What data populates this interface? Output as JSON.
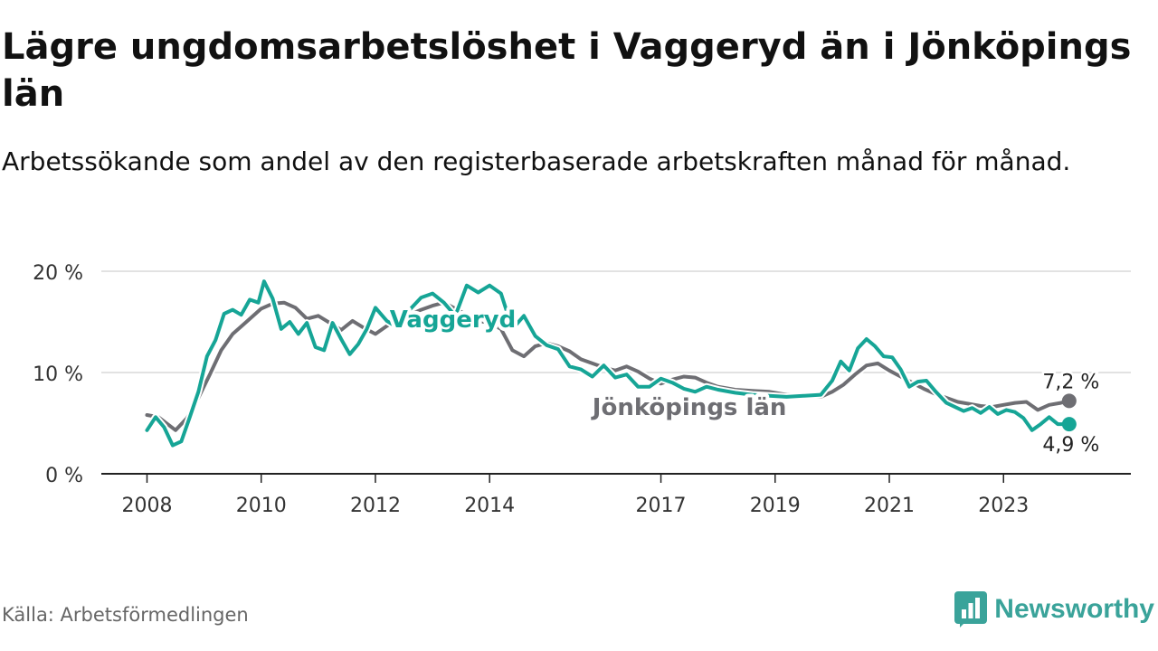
{
  "title": "Lägre ungdomsarbetslöshet i Vaggeryd än i Jönköpings län",
  "subtitle": "Arbetssökande som andel av den registerbaserade arbetskraften månad för månad.",
  "source": "Källa: Arbetsförmedlingen",
  "brand": {
    "name": "Newsworthy",
    "icon": "newsworthy-logo-icon",
    "color": "#3aa39a"
  },
  "colors": {
    "vaggeryd": "#16a596",
    "lan": "#6e6e73",
    "grid": "#d9d9d9",
    "axis": "#222222"
  },
  "chart_data": {
    "type": "line",
    "title": "Lägre ungdomsarbetslöshet i Vaggeryd än i Jönköpings län",
    "xlabel": "",
    "ylabel": "",
    "ylim": [
      0,
      20
    ],
    "xlim": [
      2007.5,
      2025.2
    ],
    "y_ticks": [
      {
        "value": 0,
        "label": "0 %"
      },
      {
        "value": 10,
        "label": "10 %"
      },
      {
        "value": 20,
        "label": "20 %"
      }
    ],
    "x_ticks": [
      {
        "value": 2008,
        "label": "2008"
      },
      {
        "value": 2010,
        "label": "2010"
      },
      {
        "value": 2012,
        "label": "2012"
      },
      {
        "value": 2014,
        "label": "2014"
      },
      {
        "value": 2017,
        "label": "2017"
      },
      {
        "value": 2019,
        "label": "2019"
      },
      {
        "value": 2021,
        "label": "2021"
      },
      {
        "value": 2023,
        "label": "2023"
      }
    ],
    "grid": true,
    "series": [
      {
        "name": "Jönköpings län",
        "label": "Jönköpings län",
        "end_label": "7,2 %",
        "x": [
          2008.0,
          2008.2,
          2008.5,
          2008.7,
          2008.9,
          2009.1,
          2009.3,
          2009.5,
          2009.7,
          2009.9,
          2010.0,
          2010.2,
          2010.4,
          2010.6,
          2010.8,
          2011.0,
          2011.2,
          2011.4,
          2011.6,
          2011.8,
          2012.0,
          2012.2,
          2012.4,
          2012.6,
          2012.8,
          2013.0,
          2013.2,
          2013.4,
          2013.6,
          2013.8,
          2014.0,
          2014.2,
          2014.4,
          2014.6,
          2014.8,
          2015.0,
          2015.2,
          2015.4,
          2015.6,
          2015.8,
          2016.0,
          2016.2,
          2016.4,
          2016.6,
          2016.8,
          2017.0,
          2017.2,
          2017.4,
          2017.6,
          2017.8,
          2018.0,
          2018.3,
          2018.6,
          2018.9,
          2019.2,
          2019.5,
          2019.8,
          2020.0,
          2020.2,
          2020.4,
          2020.6,
          2020.8,
          2021.0,
          2021.2,
          2021.4,
          2021.6,
          2021.8,
          2022.0,
          2022.2,
          2022.4,
          2022.6,
          2022.8,
          2023.0,
          2023.2,
          2023.4,
          2023.6,
          2023.8,
          2024.0,
          2024.15
        ],
        "values": [
          5.8,
          5.6,
          4.3,
          5.5,
          7.5,
          9.8,
          12.2,
          13.8,
          14.8,
          15.8,
          16.3,
          16.8,
          16.9,
          16.4,
          15.3,
          15.6,
          14.9,
          14.2,
          15.1,
          14.4,
          13.8,
          14.6,
          15.3,
          15.7,
          16.2,
          16.6,
          16.9,
          16.3,
          15.7,
          15.1,
          14.9,
          14.3,
          12.2,
          11.6,
          12.6,
          12.9,
          12.6,
          12.1,
          11.3,
          10.9,
          10.5,
          10.2,
          10.6,
          10.1,
          9.4,
          8.9,
          9.3,
          9.6,
          9.5,
          9.0,
          8.6,
          8.3,
          8.2,
          8.1,
          7.8,
          7.7,
          7.6,
          8.1,
          8.8,
          9.8,
          10.7,
          10.9,
          10.2,
          9.6,
          9.0,
          8.4,
          7.9,
          7.5,
          7.1,
          6.9,
          6.7,
          6.6,
          6.8,
          7.0,
          7.1,
          6.3,
          6.8,
          7.0,
          7.2
        ]
      },
      {
        "name": "Vaggeryd",
        "label": "Vaggeryd",
        "end_label": "4,9 %",
        "x": [
          2008.0,
          2008.15,
          2008.3,
          2008.45,
          2008.6,
          2008.75,
          2008.9,
          2009.05,
          2009.2,
          2009.35,
          2009.5,
          2009.65,
          2009.8,
          2009.95,
          2010.05,
          2010.2,
          2010.35,
          2010.5,
          2010.65,
          2010.8,
          2010.95,
          2011.1,
          2011.25,
          2011.4,
          2011.55,
          2011.7,
          2011.85,
          2012.0,
          2012.2,
          2012.4,
          2012.6,
          2012.8,
          2013.0,
          2013.2,
          2013.4,
          2013.6,
          2013.8,
          2014.0,
          2014.2,
          2014.4,
          2014.6,
          2014.8,
          2015.0,
          2015.2,
          2015.4,
          2015.6,
          2015.8,
          2016.0,
          2016.2,
          2016.4,
          2016.6,
          2016.8,
          2017.0,
          2017.2,
          2017.4,
          2017.6,
          2017.8,
          2018.0,
          2018.3,
          2018.6,
          2018.9,
          2019.2,
          2019.5,
          2019.8,
          2020.0,
          2020.15,
          2020.3,
          2020.45,
          2020.6,
          2020.75,
          2020.9,
          2021.05,
          2021.2,
          2021.35,
          2021.5,
          2021.65,
          2021.8,
          2022.0,
          2022.15,
          2022.3,
          2022.45,
          2022.6,
          2022.75,
          2022.9,
          2023.05,
          2023.2,
          2023.35,
          2023.5,
          2023.65,
          2023.8,
          2023.95,
          2024.15
        ],
        "values": [
          4.3,
          5.6,
          4.6,
          2.8,
          3.2,
          5.6,
          8.1,
          11.6,
          13.2,
          15.8,
          16.2,
          15.7,
          17.2,
          16.9,
          19.0,
          17.3,
          14.3,
          15.0,
          13.8,
          14.9,
          12.5,
          12.2,
          14.9,
          13.3,
          11.8,
          12.8,
          14.3,
          16.4,
          15.1,
          14.4,
          16.2,
          17.4,
          17.8,
          16.9,
          15.6,
          18.6,
          17.9,
          18.6,
          17.8,
          14.3,
          15.6,
          13.6,
          12.7,
          12.3,
          10.6,
          10.3,
          9.6,
          10.7,
          9.5,
          9.8,
          8.6,
          8.6,
          9.4,
          9.0,
          8.4,
          8.1,
          8.6,
          8.3,
          8.0,
          7.8,
          7.7,
          7.6,
          7.7,
          7.8,
          9.2,
          11.1,
          10.2,
          12.4,
          13.3,
          12.6,
          11.6,
          11.5,
          10.3,
          8.6,
          9.1,
          9.2,
          8.2,
          7.0,
          6.6,
          6.2,
          6.5,
          6.0,
          6.6,
          5.9,
          6.3,
          6.1,
          5.5,
          4.3,
          4.9,
          5.6,
          4.9,
          4.9
        ]
      }
    ]
  }
}
